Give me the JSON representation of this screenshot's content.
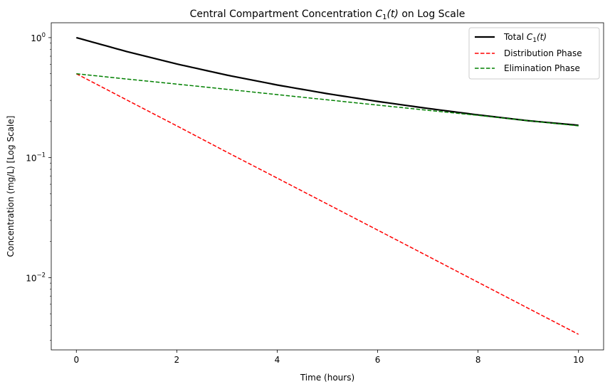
{
  "chart_data": {
    "type": "line",
    "title": "Central Compartment Concentration C1(t) on Log Scale",
    "title_parts": {
      "prefix": "Central Compartment Concentration ",
      "var": "C",
      "sub": "1",
      "arg": "(t)",
      "suffix": " on Log Scale"
    },
    "xlabel": "Time (hours)",
    "ylabel": "Concentration (mg/L) [Log Scale]",
    "xlim": [
      -0.5,
      10.5
    ],
    "ylim": [
      0.0025,
      1.33
    ],
    "yscale": "log",
    "grid": false,
    "legend_position": "top-right",
    "x_ticks": [
      0,
      2,
      4,
      6,
      8,
      10
    ],
    "x_tick_labels": [
      "0",
      "2",
      "4",
      "6",
      "8",
      "10"
    ],
    "y_major_ticks": [
      {
        "value": 0.01,
        "base": "10",
        "exp": "−2"
      },
      {
        "value": 0.1,
        "base": "10",
        "exp": "−1"
      },
      {
        "value": 1,
        "base": "10",
        "exp": "0"
      }
    ],
    "x": [
      0,
      1,
      2,
      3,
      4,
      5,
      6,
      7,
      8,
      9,
      10
    ],
    "series": [
      {
        "name": "Total C1(t)",
        "legend_parts": {
          "prefix": "Total ",
          "var": "C",
          "sub": "1",
          "arg": "(t)"
        },
        "color": "#000000",
        "style": "solid",
        "values": [
          1.0,
          0.766,
          0.603,
          0.487,
          0.403,
          0.341,
          0.294,
          0.257,
          0.227,
          0.203,
          0.186
        ]
      },
      {
        "name": "Distribution Phase",
        "color": "#ff0000",
        "style": "dashed",
        "values": [
          0.5,
          0.303,
          0.184,
          0.111,
          0.0675,
          0.041,
          0.0249,
          0.0151,
          0.00915,
          0.00555,
          0.00337
        ]
      },
      {
        "name": "Elimination Phase",
        "color": "#008000",
        "style": "dashed",
        "values": [
          0.5,
          0.452,
          0.41,
          0.371,
          0.335,
          0.303,
          0.274,
          0.248,
          0.225,
          0.203,
          0.184
        ]
      }
    ]
  }
}
